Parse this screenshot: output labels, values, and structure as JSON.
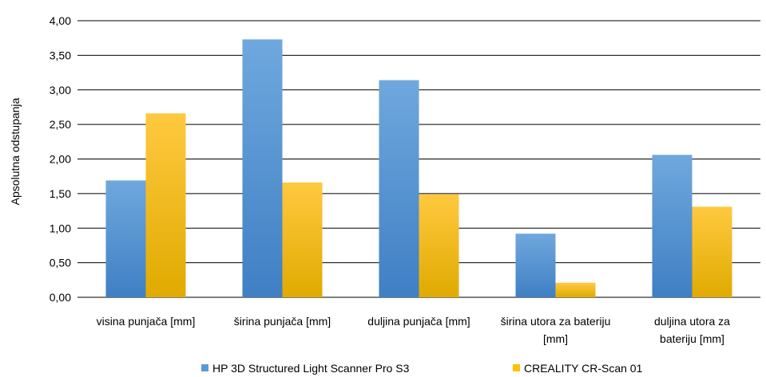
{
  "chart_data": {
    "type": "bar",
    "title": "",
    "xlabel": "",
    "ylabel": "Apsolutna odstupanja",
    "ylim": [
      0,
      4
    ],
    "yticks": [
      "0,00",
      "0,50",
      "1,00",
      "1,50",
      "2,00",
      "2,50",
      "3,00",
      "3,50",
      "4,00"
    ],
    "grid": true,
    "legend_position": "bottom",
    "categories": [
      [
        "visina punjača [mm]"
      ],
      [
        "širina punjača [mm]"
      ],
      [
        "duljina punjača [mm]"
      ],
      [
        "širina utora za bateriju",
        "[mm]"
      ],
      [
        "duljina utora za",
        "bateriju [mm]"
      ]
    ],
    "series": [
      {
        "name": "HP 3D Structured Light Scanner Pro S3",
        "color": "#5b9bd5",
        "values": [
          1.69,
          3.73,
          3.14,
          0.92,
          2.06
        ]
      },
      {
        "name": "CREALITY CR-Scan 01",
        "color": "#ffc000",
        "values": [
          2.66,
          1.66,
          1.49,
          0.21,
          1.31
        ]
      }
    ]
  }
}
